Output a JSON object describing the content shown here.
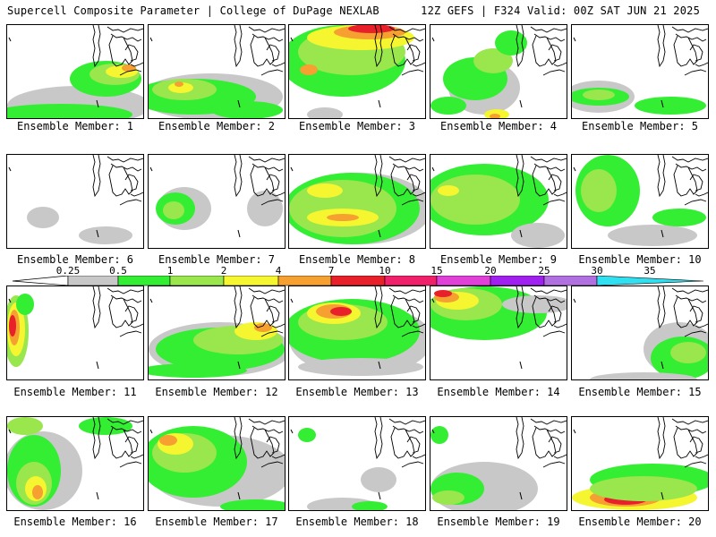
{
  "header": {
    "left": "Supercell Composite Parameter | College of DuPage NEXLAB",
    "right": "12Z GEFS | F324 Valid: 00Z SAT JUN 21 2025"
  },
  "colorbar": {
    "ticks": [
      "0.25",
      "0.5",
      "1",
      "2",
      "4",
      "7",
      "10",
      "15",
      "20",
      "25",
      "30",
      "35"
    ],
    "colors": [
      "#c8c8c8",
      "#33ee33",
      "#99e64d",
      "#f5f530",
      "#f5a030",
      "#e8202a",
      "#f0206a",
      "#e040d8",
      "#a020f0",
      "#b070e0",
      "#30e0f0"
    ]
  },
  "palette": {
    "lightgray": "#c8c8c8",
    "green": "#33ee33",
    "lightgreen": "#99e64d",
    "yellow": "#f5f530",
    "orange": "#f5a030",
    "red": "#e8202a",
    "lake_outline": "#000000"
  },
  "panels": [
    {
      "label": "Ensemble Member: 1"
    },
    {
      "label": "Ensemble Member: 2"
    },
    {
      "label": "Ensemble Member: 3"
    },
    {
      "label": "Ensemble Member: 4"
    },
    {
      "label": "Ensemble Member: 5"
    },
    {
      "label": "Ensemble Member: 6"
    },
    {
      "label": "Ensemble Member: 7"
    },
    {
      "label": "Ensemble Member: 8"
    },
    {
      "label": "Ensemble Member: 9"
    },
    {
      "label": "Ensemble Member: 10"
    },
    {
      "label": "Ensemble Member: 11"
    },
    {
      "label": "Ensemble Member: 12"
    },
    {
      "label": "Ensemble Member: 13"
    },
    {
      "label": "Ensemble Member: 14"
    },
    {
      "label": "Ensemble Member: 15"
    },
    {
      "label": "Ensemble Member: 16"
    },
    {
      "label": "Ensemble Member: 17"
    },
    {
      "label": "Ensemble Member: 18"
    },
    {
      "label": "Ensemble Member: 19"
    },
    {
      "label": "Ensemble Member: 20"
    }
  ]
}
